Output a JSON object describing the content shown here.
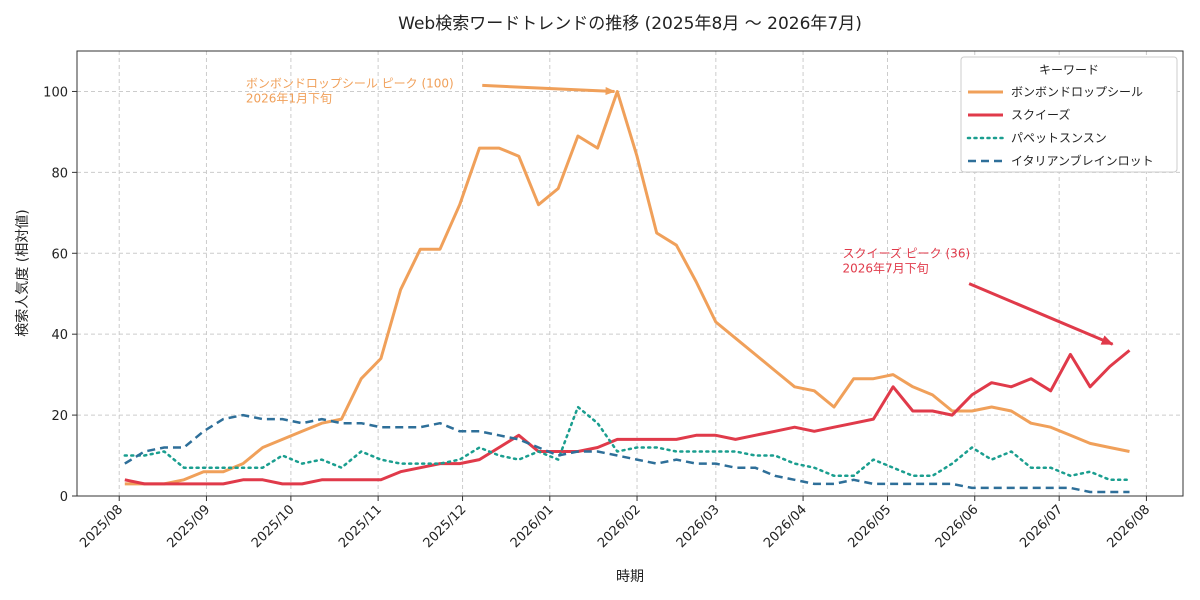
{
  "chart_data": {
    "type": "line",
    "title": "Web検索ワードトレンドの推移 (2025年8月 〜 2026年7月)",
    "xlabel": "時期",
    "ylabel": "検索人気度 (相対値)",
    "ylim": [
      0,
      110
    ],
    "yticks": [
      0,
      20,
      40,
      60,
      80,
      100
    ],
    "xlim": [
      "2025-07-17",
      "2026-08-14"
    ],
    "xticks": [
      "2025/08",
      "2025/09",
      "2025/10",
      "2025/11",
      "2025/12",
      "2026/01",
      "2026/02",
      "2026/03",
      "2026/04",
      "2026/05",
      "2026/06",
      "2026/07",
      "2026/08"
    ],
    "xtick_dates": [
      "2025-08-01",
      "2025-09-01",
      "2025-10-01",
      "2025-11-01",
      "2025-12-01",
      "2026-01-01",
      "2026-02-01",
      "2026-03-01",
      "2026-04-01",
      "2026-05-01",
      "2026-06-01",
      "2026-07-01",
      "2026-08-01"
    ],
    "grid": true,
    "legend_title": "キーワード",
    "legend_position": "top-right",
    "start_date": "2025-08-03",
    "interval_days": 7,
    "series": [
      {
        "name": "ボンボンドロップシール",
        "color": "#f0a05a",
        "style": "solid",
        "values": [
          3,
          3,
          3,
          4,
          6,
          6,
          8,
          12,
          14,
          16,
          18,
          19,
          29,
          34,
          51,
          61,
          61,
          72,
          86,
          86,
          84,
          72,
          76,
          89,
          86,
          100,
          84,
          65,
          62,
          53,
          43,
          39,
          35,
          31,
          27,
          26,
          22,
          29,
          29,
          30,
          27,
          25,
          21,
          21,
          22,
          21,
          18,
          17,
          15,
          13,
          12,
          11
        ]
      },
      {
        "name": "スクイーズ",
        "color": "#e03a4a",
        "style": "solid",
        "values": [
          4,
          3,
          3,
          3,
          3,
          3,
          4,
          4,
          3,
          3,
          4,
          4,
          4,
          4,
          6,
          7,
          8,
          8,
          9,
          12,
          15,
          11,
          11,
          11,
          12,
          14,
          14,
          14,
          14,
          15,
          15,
          14,
          15,
          16,
          17,
          16,
          17,
          18,
          19,
          27,
          21,
          21,
          20,
          25,
          28,
          27,
          29,
          26,
          35,
          27,
          32,
          36
        ]
      },
      {
        "name": "パペットスンスン",
        "color": "#1a9e8f",
        "style": "dotted",
        "values": [
          10,
          10,
          11,
          7,
          7,
          7,
          7,
          7,
          10,
          8,
          9,
          7,
          11,
          9,
          8,
          8,
          8,
          9,
          12,
          10,
          9,
          11,
          9,
          22,
          18,
          11,
          12,
          12,
          11,
          11,
          11,
          11,
          10,
          10,
          8,
          7,
          5,
          5,
          9,
          7,
          5,
          5,
          8,
          12,
          9,
          11,
          7,
          7,
          5,
          6,
          4,
          4
        ]
      },
      {
        "name": "イタリアンブレインロット",
        "color": "#2e6f99",
        "style": "dashed",
        "values": [
          8,
          11,
          12,
          12,
          16,
          19,
          20,
          19,
          19,
          18,
          19,
          18,
          18,
          17,
          17,
          17,
          18,
          16,
          16,
          15,
          14,
          12,
          10,
          11,
          11,
          10,
          9,
          8,
          9,
          8,
          8,
          7,
          7,
          5,
          4,
          3,
          3,
          4,
          3,
          3,
          3,
          3,
          3,
          2,
          2,
          2,
          2,
          2,
          2,
          1,
          1,
          1
        ]
      }
    ],
    "annotations": [
      {
        "series": "ボンボンドロップシール",
        "line1": "ボンボンドロップシール ピーク (100)",
        "line2": "2026年1月下旬",
        "color": "#f0a05a",
        "text_at": [
          "2025-09-15",
          101
        ],
        "arrow_from": [
          "2025-12-08",
          101.5
        ],
        "arrow_to": [
          "2026-01-24",
          100
        ]
      },
      {
        "series": "スクイーズ",
        "line1": "スクイーズ ピーク (36)",
        "line2": "2026年7月下旬",
        "color": "#e03a4a",
        "text_at": [
          "2026-04-15",
          59
        ],
        "arrow_from": [
          "2026-05-30",
          52.5
        ],
        "arrow_to": [
          "2026-07-20",
          37.5
        ]
      }
    ]
  }
}
